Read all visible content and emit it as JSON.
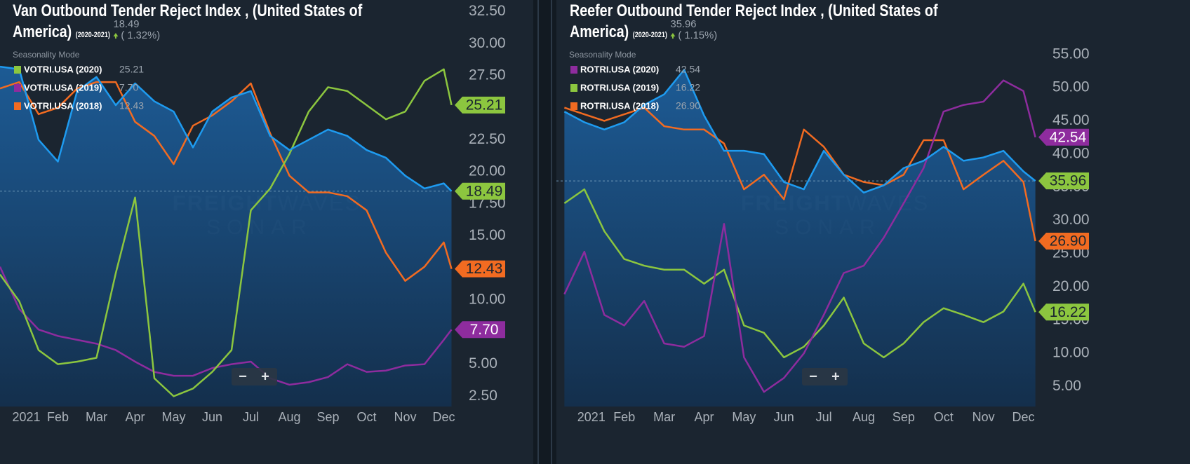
{
  "chart_data": [
    {
      "type": "line",
      "title": "Van Outbound Tender Reject Index , (United States of America)",
      "subtitle": "(2020-2021)",
      "change_label": "( 1.32%)",
      "legend_title": "Seasonality Mode",
      "x": [
        -0.5,
        0,
        0.5,
        1,
        1.5,
        2,
        2.5,
        3,
        3.5,
        4,
        4.5,
        5,
        5.5,
        6,
        6.5,
        7,
        7.5,
        8,
        8.5,
        9,
        9.5,
        10,
        10.5,
        11,
        11.2
      ],
      "xlim": [
        -0.5,
        11.5
      ],
      "xticks": [
        {
          "value": 0,
          "label": "2021"
        },
        {
          "value": 1,
          "label": "Feb"
        },
        {
          "value": 2,
          "label": "Mar"
        },
        {
          "value": 3,
          "label": "Apr"
        },
        {
          "value": 4,
          "label": "May"
        },
        {
          "value": 5,
          "label": "Jun"
        },
        {
          "value": 6,
          "label": "Jul"
        },
        {
          "value": 7,
          "label": "Aug"
        },
        {
          "value": 8,
          "label": "Sep"
        },
        {
          "value": 9,
          "label": "Oct"
        },
        {
          "value": 10,
          "label": "Nov"
        },
        {
          "value": 11,
          "label": "Dec"
        }
      ],
      "ylim": [
        1.7,
        33.4
      ],
      "yticks": [
        {
          "value": 2.5,
          "label": "2.50"
        },
        {
          "value": 5,
          "label": "5.00"
        },
        {
          "value": 7.5,
          "label": "7.50"
        },
        {
          "value": 10,
          "label": "10.00"
        },
        {
          "value": 12.5,
          "label": "12.50"
        },
        {
          "value": 15,
          "label": "15.00"
        },
        {
          "value": 17.5,
          "label": "17.50"
        },
        {
          "value": 20,
          "label": "20.00"
        },
        {
          "value": 22.5,
          "label": "22.50"
        },
        {
          "value": 25,
          "label": "25.00"
        },
        {
          "value": 27.5,
          "label": "27.50"
        },
        {
          "value": 30,
          "label": "30.00"
        },
        {
          "value": 32.5,
          "label": "32.50"
        }
      ],
      "series": [
        {
          "color": "#1e9bf0",
          "area": true,
          "badge_color": "#8cc63f",
          "values": [
            28.2,
            28.0,
            22.5,
            20.8,
            26.3,
            27.4,
            25.2,
            26.9,
            25.5,
            24.7,
            21.9,
            24.7,
            25.8,
            26.3,
            22.8,
            21.7,
            22.5,
            23.3,
            22.8,
            21.7,
            21.1,
            19.7,
            18.7,
            19.1,
            18.49
          ],
          "value_labels": [
            null,
            null,
            null,
            null,
            null,
            null,
            null,
            null,
            null,
            null,
            null,
            null,
            null,
            null,
            null,
            null,
            null,
            null,
            null,
            null,
            null,
            null,
            null,
            null,
            "18.49"
          ]
        },
        {
          "name": "VOTRI.USA (2020)",
          "color": "#8cc63f",
          "values": [
            12.0,
            9.9,
            6.1,
            5.0,
            5.2,
            5.5,
            12.1,
            18.0,
            3.9,
            2.5,
            3.1,
            4.4,
            6.1,
            17.0,
            18.7,
            21.4,
            24.7,
            26.6,
            26.3,
            25.2,
            24.1,
            24.7,
            27.1,
            28.0,
            25.21
          ],
          "value_labels": [
            null,
            null,
            null,
            null,
            null,
            null,
            null,
            null,
            null,
            null,
            null,
            null,
            null,
            null,
            null,
            null,
            null,
            null,
            null,
            null,
            null,
            null,
            null,
            null,
            "25.21"
          ]
        },
        {
          "name": "VOTRI.USA (2019)",
          "color": "#8e2c9e",
          "values": [
            12.6,
            9.3,
            7.7,
            7.2,
            6.9,
            6.6,
            6.1,
            5.2,
            4.4,
            4.1,
            4.1,
            4.7,
            5.0,
            5.2,
            3.9,
            3.4,
            3.6,
            4.0,
            5.0,
            4.4,
            4.5,
            4.9,
            5.0,
            6.9,
            7.7
          ],
          "value_labels": [
            null,
            null,
            null,
            null,
            null,
            null,
            null,
            null,
            null,
            null,
            null,
            null,
            null,
            null,
            null,
            null,
            null,
            null,
            null,
            null,
            null,
            null,
            null,
            null,
            "7.70"
          ]
        },
        {
          "name": "VOTRI.USA (2018)",
          "color": "#f26b21",
          "values": [
            26.5,
            27.0,
            24.5,
            25.0,
            26.5,
            27.0,
            27.0,
            23.9,
            22.8,
            20.6,
            23.6,
            24.4,
            25.5,
            26.9,
            23.0,
            19.7,
            18.4,
            18.4,
            18.1,
            17.0,
            13.7,
            11.5,
            12.6,
            14.5,
            12.43
          ],
          "value_labels": [
            null,
            null,
            null,
            null,
            null,
            null,
            null,
            null,
            null,
            null,
            null,
            null,
            null,
            null,
            null,
            null,
            null,
            null,
            null,
            null,
            null,
            null,
            null,
            null,
            "12.43"
          ]
        }
      ]
    },
    {
      "type": "line",
      "title": "Reefer Outbound Tender Reject Index , (United States of America)",
      "subtitle": "(2020-2021)",
      "change_label": "( 1.15%)",
      "legend_title": "Seasonality Mode",
      "x": [
        -0.5,
        0,
        0.5,
        1,
        1.5,
        2,
        2.5,
        3,
        3.5,
        4,
        4.5,
        5,
        5.5,
        6,
        6.5,
        7,
        7.5,
        8,
        8.5,
        9,
        9.5,
        10,
        10.5,
        11,
        11.3
      ],
      "xlim": [
        -0.7,
        11.5
      ],
      "xticks": [
        {
          "value": 0,
          "label": "2021"
        },
        {
          "value": 1,
          "label": "Feb"
        },
        {
          "value": 2,
          "label": "Mar"
        },
        {
          "value": 3,
          "label": "Apr"
        },
        {
          "value": 4,
          "label": "May"
        },
        {
          "value": 5,
          "label": "Jun"
        },
        {
          "value": 6,
          "label": "Jul"
        },
        {
          "value": 7,
          "label": "Aug"
        },
        {
          "value": 8,
          "label": "Sep"
        },
        {
          "value": 9,
          "label": "Oct"
        },
        {
          "value": 10,
          "label": "Nov"
        },
        {
          "value": 11,
          "label": "Dec"
        }
      ],
      "ylim": [
        2.0,
        63.2
      ],
      "yticks": [
        {
          "value": 5,
          "label": "5.00"
        },
        {
          "value": 10,
          "label": "10.00"
        },
        {
          "value": 15,
          "label": "15.00"
        },
        {
          "value": 20,
          "label": "20.00"
        },
        {
          "value": 25,
          "label": "25.00"
        },
        {
          "value": 30,
          "label": "30.00"
        },
        {
          "value": 35,
          "label": "35.00"
        },
        {
          "value": 40,
          "label": "40.00"
        },
        {
          "value": 45,
          "label": "45.00"
        },
        {
          "value": 50,
          "label": "50.00"
        },
        {
          "value": 55,
          "label": "55.00"
        }
      ],
      "series": [
        {
          "color": "#1e9bf0",
          "area": true,
          "badge_color": "#8cc63f",
          "values": [
            46.4,
            44.8,
            43.7,
            44.8,
            47.4,
            49.0,
            52.7,
            45.8,
            40.5,
            40.5,
            40.0,
            35.8,
            34.7,
            40.5,
            36.9,
            34.2,
            35.3,
            37.9,
            39.0,
            41.1,
            39.0,
            39.5,
            40.5,
            37.4,
            35.96
          ],
          "value_labels": [
            null,
            null,
            null,
            null,
            null,
            null,
            null,
            null,
            null,
            null,
            null,
            null,
            null,
            null,
            null,
            null,
            null,
            null,
            null,
            null,
            null,
            null,
            null,
            null,
            "35.96"
          ]
        },
        {
          "name": "ROTRI.USA (2020)",
          "color": "#8e2c9e",
          "values": [
            18.9,
            25.3,
            15.8,
            14.2,
            17.9,
            11.5,
            11.0,
            12.6,
            29.5,
            9.4,
            4.2,
            6.3,
            10.0,
            15.8,
            22.1,
            23.2,
            27.4,
            32.6,
            37.9,
            46.4,
            47.4,
            47.9,
            51.1,
            49.5,
            42.54
          ],
          "value_labels": [
            null,
            null,
            null,
            null,
            null,
            null,
            null,
            null,
            null,
            null,
            null,
            null,
            null,
            null,
            null,
            null,
            null,
            null,
            null,
            null,
            null,
            null,
            null,
            null,
            "42.54"
          ]
        },
        {
          "name": "ROTRI.USA (2019)",
          "color": "#8cc63f",
          "values": [
            32.6,
            34.7,
            28.4,
            24.2,
            23.2,
            22.6,
            22.6,
            20.5,
            22.6,
            14.2,
            13.1,
            9.4,
            11.0,
            14.2,
            18.4,
            11.5,
            9.4,
            11.5,
            14.7,
            16.8,
            15.8,
            14.7,
            16.3,
            20.5,
            16.22
          ],
          "value_labels": [
            null,
            null,
            null,
            null,
            null,
            null,
            null,
            null,
            null,
            null,
            null,
            null,
            null,
            null,
            null,
            null,
            null,
            null,
            null,
            null,
            null,
            null,
            null,
            null,
            "16.22"
          ]
        },
        {
          "name": "ROTRI.USA (2018)",
          "color": "#f26b21",
          "values": [
            47.0,
            46.0,
            45.0,
            46.0,
            47.0,
            44.2,
            43.7,
            43.7,
            41.6,
            34.7,
            36.9,
            33.2,
            43.7,
            41.1,
            36.9,
            35.8,
            35.3,
            36.9,
            42.1,
            42.1,
            34.7,
            36.9,
            39.0,
            35.8,
            26.9
          ],
          "value_labels": [
            null,
            null,
            null,
            null,
            null,
            null,
            null,
            null,
            null,
            null,
            null,
            null,
            null,
            null,
            null,
            null,
            null,
            null,
            null,
            null,
            null,
            null,
            null,
            null,
            "26.90"
          ]
        }
      ]
    }
  ],
  "watermark": {
    "brand": [
      "FREIGHT",
      "WAVES"
    ],
    "product": "SONAR"
  },
  "zoom": [
    "−",
    "+"
  ]
}
